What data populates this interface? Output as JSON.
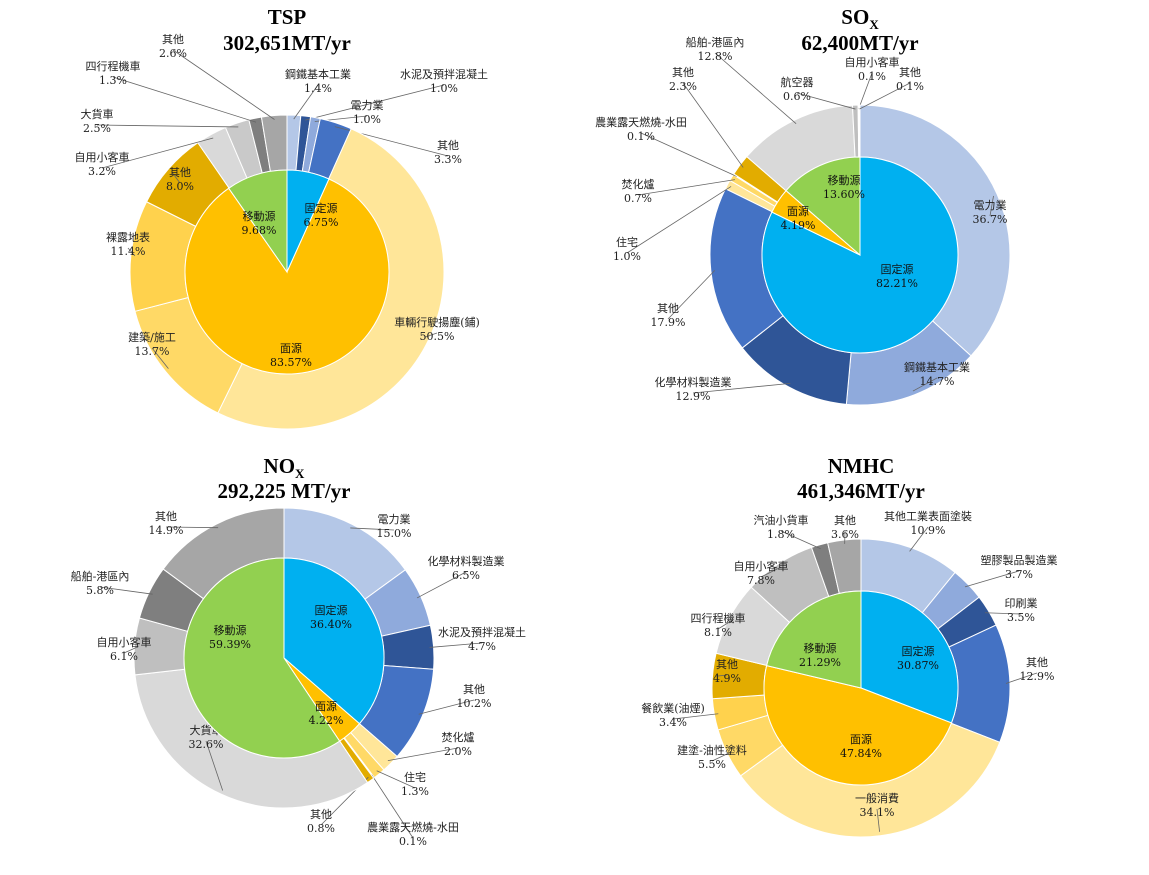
{
  "chart_data": [
    {
      "type": "pie",
      "title": "TSP",
      "subtitle": "302,651MT/yr",
      "inner": [
        {
          "name": "固定源",
          "value": 6.75,
          "label": "6.75%",
          "color": "#00b0f0"
        },
        {
          "name": "面源",
          "value": 83.57,
          "label": "83.57%",
          "color": "#ffc000"
        },
        {
          "name": "移動源",
          "value": 9.68,
          "label": "9.68%",
          "color": "#92d050"
        }
      ],
      "outer": [
        {
          "name": "鋼鐵基本工業",
          "value": 1.4,
          "label": "1.4%",
          "color": "#b4c7e7"
        },
        {
          "name": "水泥及預拌混凝土",
          "value": 1.0,
          "label": "1.0%",
          "color": "#2f5597"
        },
        {
          "name": "電力業",
          "value": 1.0,
          "label": "1.0%",
          "color": "#8faadc"
        },
        {
          "name": "其他",
          "value": 3.3,
          "label": "3.3%",
          "color": "#4472c4"
        },
        {
          "name": "車輛行駛揚塵(鋪)",
          "value": 50.5,
          "label": "50.5%",
          "color": "#ffe699"
        },
        {
          "name": "建築/施工",
          "value": 13.7,
          "label": "13.7%",
          "color": "#ffd966"
        },
        {
          "name": "裸露地表",
          "value": 11.4,
          "label": "11.4%",
          "color": "#ffd24d"
        },
        {
          "name": "其他",
          "value": 8.0,
          "label": "8.0%",
          "color": "#e2ac00"
        },
        {
          "name": "自用小客車",
          "value": 3.2,
          "label": "3.2%",
          "color": "#d9d9d9"
        },
        {
          "name": "大貨車",
          "value": 2.5,
          "label": "2.5%",
          "color": "#c9c9c9"
        },
        {
          "name": "四行程機車",
          "value": 1.3,
          "label": "1.3%",
          "color": "#7f7f7f"
        },
        {
          "name": "其他",
          "value": 2.6,
          "label": "2.6%",
          "color": "#a6a6a6"
        }
      ]
    },
    {
      "type": "pie",
      "title": "SO",
      "title_sub": "X",
      "subtitle": "62,400MT/yr",
      "inner": [
        {
          "name": "固定源",
          "value": 82.21,
          "label": "82.21%",
          "color": "#00b0f0"
        },
        {
          "name": "面源",
          "value": 4.19,
          "label": "4.19%",
          "color": "#ffc000"
        },
        {
          "name": "移動源",
          "value": 13.6,
          "label": "13.60%",
          "color": "#92d050"
        }
      ],
      "outer": [
        {
          "name": "電力業",
          "value": 36.7,
          "label": "36.7%",
          "color": "#b4c7e7"
        },
        {
          "name": "鋼鐵基本工業",
          "value": 14.7,
          "label": "14.7%",
          "color": "#8faadc"
        },
        {
          "name": "化學材料製造業",
          "value": 12.9,
          "label": "12.9%",
          "color": "#2f5597"
        },
        {
          "name": "其他",
          "value": 17.9,
          "label": "17.9%",
          "color": "#4472c4"
        },
        {
          "name": "住宅",
          "value": 1.0,
          "label": "1.0%",
          "color": "#ffe699"
        },
        {
          "name": "焚化爐",
          "value": 0.7,
          "label": "0.7%",
          "color": "#ffd966"
        },
        {
          "name": "農業露天燃燒-水田",
          "value": 0.1,
          "label": "0.1%",
          "color": "#ffd24d"
        },
        {
          "name": "其他",
          "value": 2.3,
          "label": "2.3%",
          "color": "#e2ac00"
        },
        {
          "name": "船舶-港區內",
          "value": 12.8,
          "label": "12.8%",
          "color": "#d9d9d9"
        },
        {
          "name": "航空器",
          "value": 0.6,
          "label": "0.6%",
          "color": "#bfbfbf"
        },
        {
          "name": "自用小客車",
          "value": 0.1,
          "label": "0.1%",
          "color": "#7f7f7f"
        },
        {
          "name": "其他",
          "value": 0.1,
          "label": "0.1%",
          "color": "#a6a6a6"
        }
      ]
    },
    {
      "type": "pie",
      "title": "NO",
      "title_sub": "X",
      "subtitle": "292,225 MT/yr",
      "inner": [
        {
          "name": "固定源",
          "value": 36.4,
          "label": "36.40%",
          "color": "#00b0f0"
        },
        {
          "name": "面源",
          "value": 4.22,
          "label": "4.22%",
          "color": "#ffc000"
        },
        {
          "name": "移動源",
          "value": 59.39,
          "label": "59.39%",
          "color": "#92d050"
        }
      ],
      "outer": [
        {
          "name": "電力業",
          "value": 15.0,
          "label": "15.0%",
          "color": "#b4c7e7"
        },
        {
          "name": "化學材料製造業",
          "value": 6.5,
          "label": "6.5%",
          "color": "#8faadc"
        },
        {
          "name": "水泥及預拌混凝土",
          "value": 4.7,
          "label": "4.7%",
          "color": "#2f5597"
        },
        {
          "name": "其他",
          "value": 10.2,
          "label": "10.2%",
          "color": "#4472c4"
        },
        {
          "name": "焚化爐",
          "value": 2.0,
          "label": "2.0%",
          "color": "#ffe699"
        },
        {
          "name": "住宅",
          "value": 1.3,
          "label": "1.3%",
          "color": "#ffd966"
        },
        {
          "name": "農業露天燃燒-水田",
          "value": 0.1,
          "label": "0.1%",
          "color": "#ffd24d"
        },
        {
          "name": "其他",
          "value": 0.8,
          "label": "0.8%",
          "color": "#e2ac00"
        },
        {
          "name": "大貨車",
          "value": 32.6,
          "label": "32.6%",
          "color": "#d9d9d9"
        },
        {
          "name": "自用小客車",
          "value": 6.1,
          "label": "6.1%",
          "color": "#bfbfbf"
        },
        {
          "name": "船舶-港區內",
          "value": 5.8,
          "label": "5.8%",
          "color": "#7f7f7f"
        },
        {
          "name": "其他",
          "value": 14.9,
          "label": "14.9%",
          "color": "#a6a6a6"
        }
      ]
    },
    {
      "type": "pie",
      "title": "NMHC",
      "subtitle": "461,346MT/yr",
      "inner": [
        {
          "name": "固定源",
          "value": 30.87,
          "label": "30.87%",
          "color": "#00b0f0"
        },
        {
          "name": "面源",
          "value": 47.84,
          "label": "47.84%",
          "color": "#ffc000"
        },
        {
          "name": "移動源",
          "value": 21.29,
          "label": "21.29%",
          "color": "#92d050"
        }
      ],
      "outer": [
        {
          "name": "其他工業表面塗裝",
          "value": 10.9,
          "label": "10.9%",
          "color": "#b4c7e7"
        },
        {
          "name": "塑膠製品製造業",
          "value": 3.7,
          "label": "3.7%",
          "color": "#8faadc"
        },
        {
          "name": "印刷業",
          "value": 3.5,
          "label": "3.5%",
          "color": "#2f5597"
        },
        {
          "name": "其他",
          "value": 12.9,
          "label": "12.9%",
          "color": "#4472c4"
        },
        {
          "name": "一般消費",
          "value": 34.1,
          "label": "34.1%",
          "color": "#ffe699"
        },
        {
          "name": "建塗-油性塗料",
          "value": 5.5,
          "label": "5.5%",
          "color": "#ffd966"
        },
        {
          "name": "餐飲業(油煙)",
          "value": 3.4,
          "label": "3.4%",
          "color": "#ffd24d"
        },
        {
          "name": "其他",
          "value": 4.9,
          "label": "4.9%",
          "color": "#e2ac00"
        },
        {
          "name": "四行程機車",
          "value": 8.1,
          "label": "8.1%",
          "color": "#d9d9d9"
        },
        {
          "name": "自用小客車",
          "value": 7.8,
          "label": "7.8%",
          "color": "#bfbfbf"
        },
        {
          "name": "汽油小貨車",
          "value": 1.8,
          "label": "1.8%",
          "color": "#7f7f7f"
        },
        {
          "name": "其他",
          "value": 3.6,
          "label": "3.6%",
          "color": "#a6a6a6"
        }
      ]
    }
  ]
}
